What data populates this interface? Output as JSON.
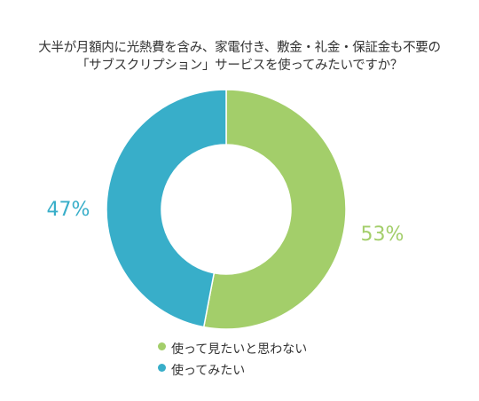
{
  "chart_data": {
    "type": "pie",
    "title_lines": [
      "大半が月額内に光熱費を含み、家電付き、敷金・礼金・保証金も不要の",
      "「サブスクリプション」サービスを使ってみたいですか？"
    ],
    "categories": [
      "使って見たいと思わない",
      "使ってみたい"
    ],
    "values": [
      53,
      47
    ],
    "labels": [
      "53%",
      "47%"
    ],
    "colors": [
      "#a3ce6a",
      "#38aec9"
    ],
    "legend_position": "bottom-left"
  }
}
